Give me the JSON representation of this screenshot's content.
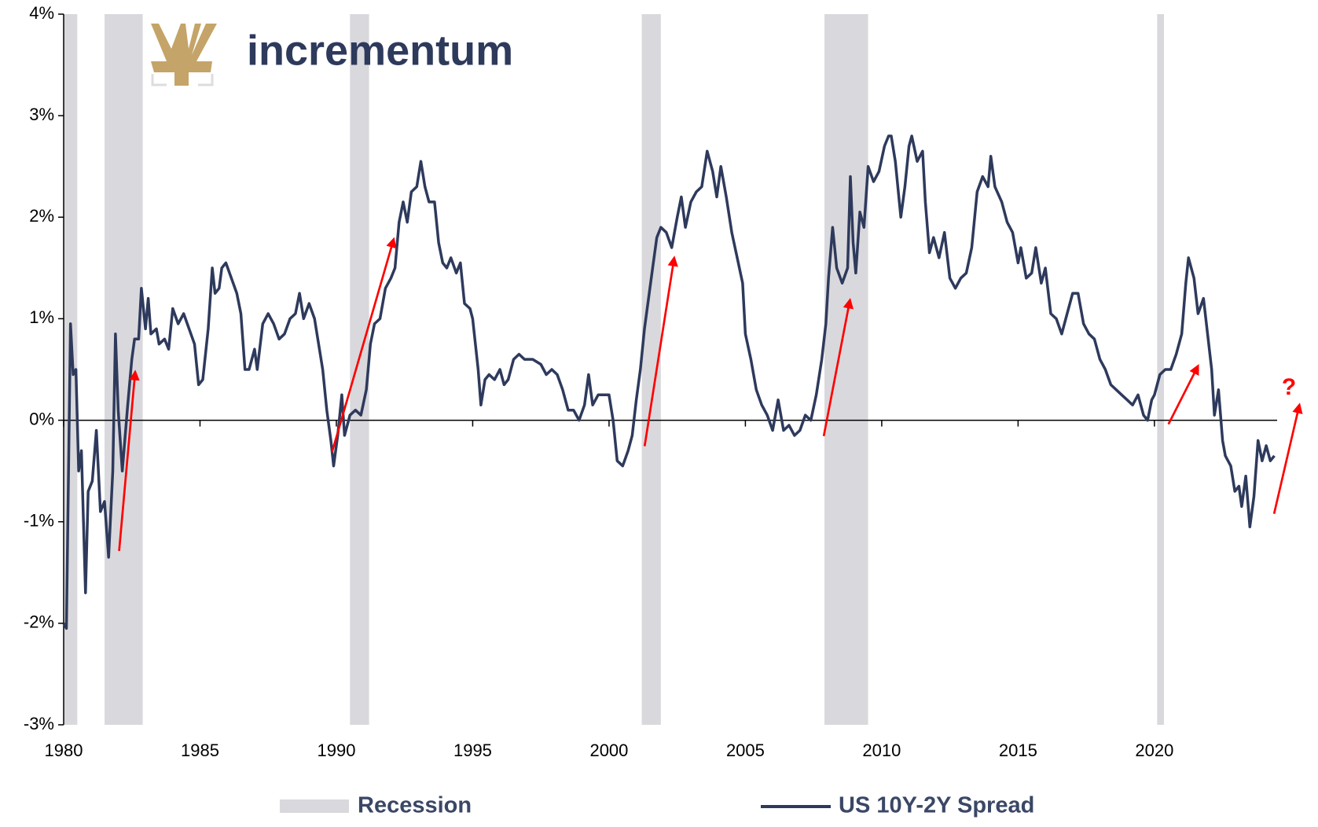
{
  "logo": "incrementum",
  "chart_data": {
    "type": "line",
    "xlim": [
      1980,
      2024.5
    ],
    "xticks": [
      1980,
      1985,
      1990,
      1995,
      2000,
      2005,
      2010,
      2015,
      2020
    ],
    "ylim": [
      -3,
      4
    ],
    "yticks": [
      {
        "value": -3,
        "label": "-3%"
      },
      {
        "value": -2,
        "label": "-2%"
      },
      {
        "value": -1,
        "label": "-1%"
      },
      {
        "value": 0,
        "label": "0%"
      },
      {
        "value": 1,
        "label": "1%"
      },
      {
        "value": 2,
        "label": "2%"
      },
      {
        "value": 3,
        "label": "3%"
      },
      {
        "value": 4,
        "label": "4%"
      }
    ],
    "recessions": {
      "name": "Recession",
      "color": "#d9d8dc",
      "periods": [
        [
          1980.0,
          1980.5
        ],
        [
          1981.5,
          1982.9
        ],
        [
          1990.5,
          1991.2
        ],
        [
          2001.2,
          2001.9
        ],
        [
          2007.9,
          2009.5
        ],
        [
          2020.1,
          2020.35
        ]
      ]
    },
    "annotations": [
      "?"
    ],
    "series": [
      {
        "name": "US 10Y-2Y Spread",
        "color": "#2e3a5c",
        "x": [
          1980.0,
          1980.1,
          1980.25,
          1980.35,
          1980.45,
          1980.55,
          1980.65,
          1980.8,
          1980.9,
          1981.05,
          1981.2,
          1981.35,
          1981.5,
          1981.65,
          1981.8,
          1981.9,
          1982.0,
          1982.15,
          1982.35,
          1982.5,
          1982.6,
          1982.75,
          1982.85,
          1983.0,
          1983.1,
          1983.2,
          1983.4,
          1983.5,
          1983.7,
          1983.85,
          1984.0,
          1984.2,
          1984.4,
          1984.6,
          1984.8,
          1984.95,
          1985.1,
          1985.3,
          1985.45,
          1985.55,
          1985.7,
          1985.8,
          1985.95,
          1986.15,
          1986.35,
          1986.5,
          1986.65,
          1986.8,
          1987.0,
          1987.1,
          1987.3,
          1987.5,
          1987.7,
          1987.9,
          1988.1,
          1988.3,
          1988.5,
          1988.65,
          1988.8,
          1989.0,
          1989.2,
          1989.35,
          1989.5,
          1989.65,
          1989.8,
          1989.9,
          1990.05,
          1990.2,
          1990.3,
          1990.5,
          1990.7,
          1990.9,
          1991.1,
          1991.25,
          1991.4,
          1991.6,
          1991.8,
          1992.0,
          1992.15,
          1992.3,
          1992.45,
          1992.6,
          1992.75,
          1992.95,
          1993.1,
          1993.25,
          1993.4,
          1993.6,
          1993.75,
          1993.9,
          1994.05,
          1994.2,
          1994.4,
          1994.55,
          1994.7,
          1994.9,
          1995.0,
          1995.2,
          1995.3,
          1995.45,
          1995.6,
          1995.8,
          1996.0,
          1996.15,
          1996.3,
          1996.5,
          1996.7,
          1996.9,
          1997.2,
          1997.5,
          1997.7,
          1997.9,
          1998.1,
          1998.3,
          1998.5,
          1998.7,
          1998.9,
          1999.1,
          1999.25,
          1999.4,
          1999.6,
          1999.8,
          2000.0,
          2000.15,
          2000.3,
          2000.5,
          2000.7,
          2000.85,
          2001.0,
          2001.15,
          2001.3,
          2001.45,
          2001.6,
          2001.75,
          2001.9,
          2002.1,
          2002.3,
          2002.5,
          2002.65,
          2002.8,
          2003.0,
          2003.2,
          2003.4,
          2003.6,
          2003.8,
          2003.95,
          2004.1,
          2004.3,
          2004.5,
          2004.7,
          2004.9,
          2005.0,
          2005.2,
          2005.4,
          2005.6,
          2005.8,
          2006.0,
          2006.2,
          2006.4,
          2006.6,
          2006.8,
          2007.0,
          2007.2,
          2007.4,
          2007.6,
          2007.8,
          2007.95,
          2008.05,
          2008.2,
          2008.35,
          2008.55,
          2008.75,
          2008.85,
          2008.95,
          2009.05,
          2009.2,
          2009.35,
          2009.5,
          2009.7,
          2009.9,
          2010.1,
          2010.25,
          2010.35,
          2010.5,
          2010.7,
          2010.85,
          2011.0,
          2011.1,
          2011.3,
          2011.5,
          2011.6,
          2011.75,
          2011.9,
          2012.1,
          2012.3,
          2012.5,
          2012.7,
          2012.9,
          2013.1,
          2013.3,
          2013.5,
          2013.7,
          2013.9,
          2014.0,
          2014.15,
          2014.4,
          2014.6,
          2014.8,
          2015.0,
          2015.1,
          2015.3,
          2015.5,
          2015.65,
          2015.85,
          2016.0,
          2016.2,
          2016.4,
          2016.6,
          2016.8,
          2017.0,
          2017.2,
          2017.4,
          2017.6,
          2017.8,
          2018.0,
          2018.2,
          2018.4,
          2018.6,
          2018.8,
          2019.0,
          2019.2,
          2019.4,
          2019.6,
          2019.75,
          2019.9,
          2020.0,
          2020.2,
          2020.4,
          2020.6,
          2020.8,
          2021.0,
          2021.15,
          2021.25,
          2021.45,
          2021.6,
          2021.8,
          2021.95,
          2022.1,
          2022.2,
          2022.35,
          2022.5,
          2022.6,
          2022.8,
          2022.95,
          2023.1,
          2023.2,
          2023.35,
          2023.5,
          2023.65,
          2023.8,
          2023.95,
          2024.1,
          2024.25,
          2024.4
        ],
        "values": [
          -2.0,
          -2.05,
          0.95,
          0.45,
          0.5,
          -0.5,
          -0.3,
          -1.7,
          -0.7,
          -0.6,
          -0.1,
          -0.9,
          -0.8,
          -1.35,
          -0.5,
          0.85,
          0.1,
          -0.5,
          0.15,
          0.6,
          0.8,
          0.8,
          1.3,
          0.9,
          1.2,
          0.85,
          0.9,
          0.75,
          0.8,
          0.7,
          1.1,
          0.95,
          1.05,
          0.9,
          0.75,
          0.35,
          0.4,
          0.9,
          1.5,
          1.25,
          1.3,
          1.5,
          1.55,
          1.4,
          1.25,
          1.05,
          0.5,
          0.5,
          0.7,
          0.5,
          0.95,
          1.05,
          0.95,
          0.8,
          0.85,
          1.0,
          1.05,
          1.25,
          1.0,
          1.15,
          1.0,
          0.75,
          0.5,
          0.1,
          -0.2,
          -0.45,
          -0.15,
          0.25,
          -0.15,
          0.05,
          0.1,
          0.05,
          0.3,
          0.75,
          0.95,
          1.0,
          1.3,
          1.4,
          1.5,
          1.95,
          2.15,
          1.95,
          2.25,
          2.3,
          2.55,
          2.3,
          2.15,
          2.15,
          1.75,
          1.55,
          1.5,
          1.6,
          1.45,
          1.55,
          1.15,
          1.1,
          1.0,
          0.5,
          0.15,
          0.4,
          0.45,
          0.4,
          0.5,
          0.35,
          0.4,
          0.6,
          0.65,
          0.6,
          0.6,
          0.55,
          0.45,
          0.5,
          0.45,
          0.3,
          0.1,
          0.1,
          0.0,
          0.15,
          0.45,
          0.15,
          0.25,
          0.25,
          0.25,
          0.0,
          -0.4,
          -0.45,
          -0.3,
          -0.15,
          0.2,
          0.5,
          0.9,
          1.2,
          1.5,
          1.8,
          1.9,
          1.85,
          1.7,
          2.0,
          2.2,
          1.9,
          2.15,
          2.25,
          2.3,
          2.65,
          2.45,
          2.2,
          2.5,
          2.2,
          1.85,
          1.6,
          1.35,
          0.85,
          0.6,
          0.3,
          0.15,
          0.05,
          -0.1,
          0.2,
          -0.1,
          -0.05,
          -0.15,
          -0.1,
          0.05,
          0.0,
          0.25,
          0.6,
          0.95,
          1.4,
          1.9,
          1.5,
          1.35,
          1.5,
          2.4,
          1.75,
          1.45,
          2.05,
          1.9,
          2.5,
          2.35,
          2.45,
          2.7,
          2.8,
          2.8,
          2.55,
          2.0,
          2.3,
          2.7,
          2.8,
          2.55,
          2.65,
          2.15,
          1.65,
          1.8,
          1.6,
          1.85,
          1.4,
          1.3,
          1.4,
          1.45,
          1.7,
          2.25,
          2.4,
          2.3,
          2.6,
          2.3,
          2.15,
          1.95,
          1.85,
          1.55,
          1.7,
          1.4,
          1.45,
          1.7,
          1.35,
          1.5,
          1.05,
          1.0,
          0.85,
          1.05,
          1.25,
          1.25,
          0.95,
          0.85,
          0.8,
          0.6,
          0.5,
          0.35,
          0.3,
          0.25,
          0.2,
          0.15,
          0.25,
          0.05,
          0.0,
          0.2,
          0.25,
          0.45,
          0.5,
          0.5,
          0.65,
          0.85,
          1.35,
          1.6,
          1.4,
          1.05,
          1.2,
          0.85,
          0.5,
          0.05,
          0.3,
          -0.2,
          -0.35,
          -0.45,
          -0.7,
          -0.65,
          -0.85,
          -0.55,
          -1.05,
          -0.75,
          -0.2,
          -0.4,
          -0.25,
          -0.4,
          -0.35
        ]
      }
    ]
  }
}
